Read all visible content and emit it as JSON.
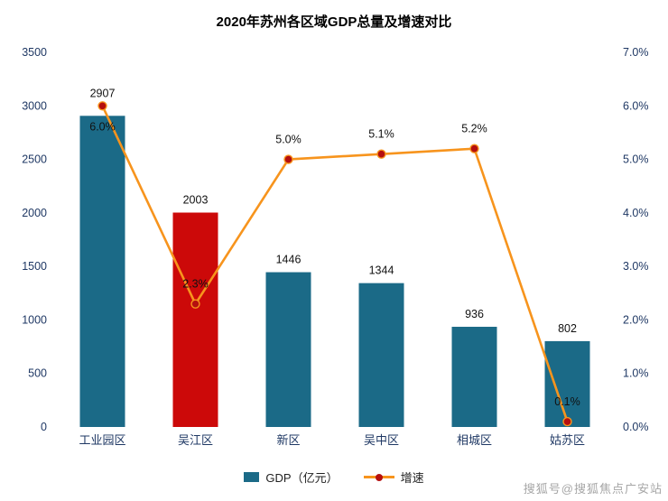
{
  "title": "2020年苏州各区域GDP总量及增速对比",
  "legend": {
    "gdp_label": "GDP（亿元）",
    "growth_label": "增速"
  },
  "watermark": "搜狐号@搜狐焦点广安站",
  "chart_data": {
    "type": "bar",
    "subtype": "bar+line combo, dual axis",
    "title": "2020年苏州各区域GDP总量及增速对比",
    "categories": [
      "工业园区",
      "吴江区",
      "新区",
      "吴中区",
      "相城区",
      "姑苏区"
    ],
    "series": [
      {
        "name": "GDP（亿元）",
        "type": "bar",
        "axis": "left",
        "values": [
          2907,
          2003,
          1446,
          1344,
          936,
          802
        ]
      },
      {
        "name": "增速",
        "type": "line",
        "axis": "right",
        "values": [
          6.0,
          2.3,
          5.0,
          5.1,
          5.2,
          0.1
        ],
        "labels": [
          "6.0%",
          "2.3%",
          "5.0%",
          "5.1%",
          "5.2%",
          "0.1%"
        ]
      }
    ],
    "left_axis": {
      "min": 0,
      "max": 3500,
      "step": 500,
      "tick_labels": [
        "0",
        "500",
        "1000",
        "1500",
        "2000",
        "2500",
        "3000",
        "3500"
      ]
    },
    "right_axis": {
      "min": 0,
      "max": 7,
      "step": 1,
      "tick_labels": [
        "0.0%",
        "1.0%",
        "2.0%",
        "3.0%",
        "4.0%",
        "5.0%",
        "6.0%",
        "7.0%"
      ]
    },
    "legend_position": "bottom",
    "grid": false,
    "colors": {
      "bar": "#1b6a87",
      "bar_highlight": "#cc0909",
      "highlight_category": "吴江区",
      "line": "#f7941d",
      "marker": "#b50f0f",
      "axis_text": "#1f3864",
      "data_label": "#111111"
    }
  }
}
